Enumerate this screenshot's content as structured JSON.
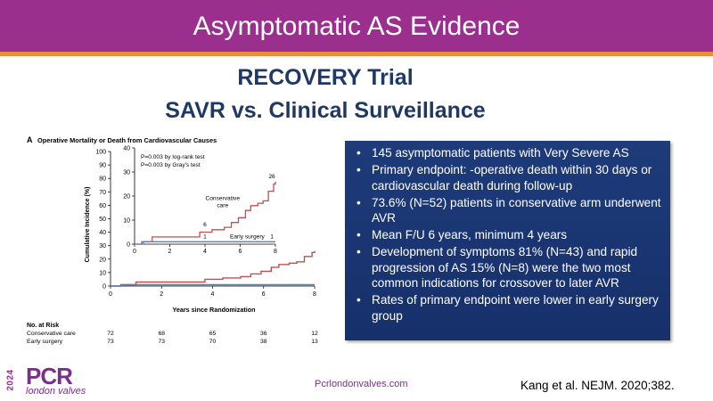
{
  "slide": {
    "title": "Asymptomatic AS Evidence",
    "heading_line1": "RECOVERY Trial",
    "heading_line2": "SAVR vs. Clinical Surveillance",
    "bullets": [
      "145 asymptomatic patients with Very Severe AS",
      "Primary endpoint: -operative death within 30 days or cardiovascular death during  follow-up",
      "73.6% (N=52) patients in conservative arm underwent AVR",
      "Mean F/U 6 years, minimum 4 years",
      "Development of symptoms 81% (N=43) and rapid progression of AS  15% (N=8) were the two most common indications for  crossover to later AVR",
      "Rates of primary endpoint were lower in early surgery  group"
    ],
    "website": "Pcrlondonvalves.com",
    "citation": "Kang et al. NEJM. 2020;382.",
    "logo": {
      "year": "2024",
      "name": "PCR",
      "sub": "london valves"
    },
    "colors": {
      "banner": "#9a2f8e",
      "stripe": "#f08a3c",
      "heading": "#1f3864",
      "bullet_box": "#1e3b7a",
      "conservative": "#c0504d",
      "early": "#4f81bd"
    }
  },
  "chart_data": {
    "type": "line",
    "panel_label": "A",
    "title": "Operative Mortality or Death from Cardiovascular Causes",
    "xlabel": "Years since Randomization",
    "ylabel": "Cumulative Incidence (%)",
    "xlim": [
      0,
      8
    ],
    "ylim": [
      0,
      100
    ],
    "x_ticks": [
      0,
      2,
      4,
      6,
      8
    ],
    "y_ticks": [
      0,
      10,
      20,
      30,
      40,
      50,
      60,
      70,
      80,
      90,
      100
    ],
    "inset": {
      "xlim": [
        0,
        8
      ],
      "ylim": [
        0,
        40
      ],
      "x_ticks": [
        0,
        2,
        4,
        6,
        8
      ],
      "y_ticks": [
        0,
        10,
        20,
        30,
        40
      ],
      "annotations": {
        "p1": "P=0.003 by log-rank test",
        "p2": "P=0.003 by Gray's test",
        "conservative_l1": "Conservative",
        "conservative_l2": "care",
        "early": "Early surgery",
        "end_conservative": "26",
        "mid_conservative": "6",
        "mid_early": "1",
        "end_early": "1"
      }
    },
    "series": [
      {
        "name": "Conservative care",
        "color": "#c0504d",
        "x": [
          0,
          0.4,
          1.0,
          3.4,
          3.7,
          4.4,
          5.1,
          5.5,
          5.9,
          6.3,
          6.6,
          7.0,
          7.3,
          7.6,
          7.9,
          8.0
        ],
        "y": [
          0,
          1,
          3,
          3,
          5,
          6,
          7,
          9,
          11,
          14,
          16,
          17,
          18,
          22,
          25,
          26
        ]
      },
      {
        "name": "Early surgery",
        "color": "#4f81bd",
        "x": [
          0,
          0.5,
          3.5,
          8.0
        ],
        "y": [
          0,
          1,
          1,
          1
        ]
      }
    ],
    "at_risk": {
      "title": "No. at Risk",
      "times": [
        0,
        2,
        4,
        6,
        8
      ],
      "rows": [
        {
          "label": "Conservative care",
          "values": [
            "72",
            "68",
            "65",
            "36",
            "12"
          ]
        },
        {
          "label": "Early surgery",
          "values": [
            "73",
            "73",
            "70",
            "38",
            "13"
          ]
        }
      ]
    }
  }
}
